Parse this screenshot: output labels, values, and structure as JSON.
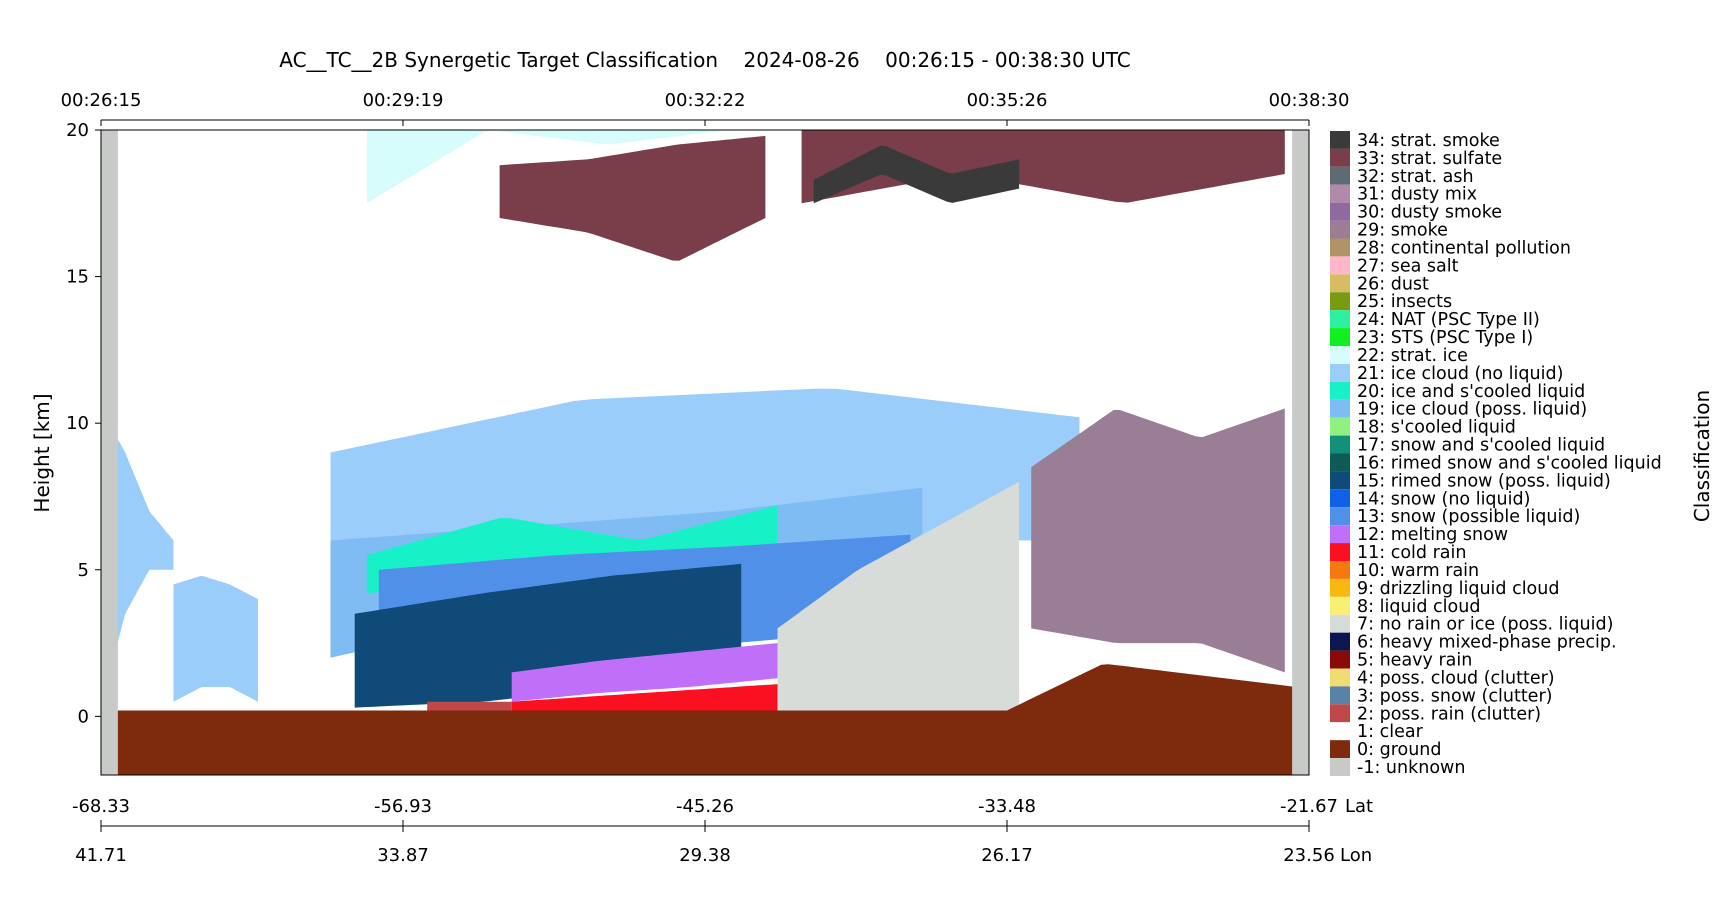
{
  "chart_data": {
    "type": "heatmap",
    "title": "AC__TC__2B Synergetic Target Classification    2024-08-26    00:26:15 - 00:38:30 UTC",
    "ylabel": "Height [km]",
    "ylim": [
      -2,
      20
    ],
    "y_ticks": [
      "0",
      "5",
      "10",
      "15",
      "20"
    ],
    "time_ticks": [
      "00:26:15",
      "00:29:19",
      "00:32:22",
      "00:35:26",
      "00:38:30"
    ],
    "lat_ticks": [
      "-68.33",
      "-56.93",
      "-45.26",
      "-33.48",
      "-21.67"
    ],
    "lat_label": "Lat",
    "lon_ticks": [
      "41.71",
      "33.87",
      "29.38",
      "26.17",
      "23.56"
    ],
    "lon_label": "Lon",
    "colorbar_label": "Classification",
    "legend_placement": "right",
    "classes": [
      {
        "label": "34: strat. smoke",
        "color": "#3a3a3a"
      },
      {
        "label": "33: strat. sulfate",
        "color": "#7a3e4a"
      },
      {
        "label": "32: strat. ash",
        "color": "#5e6b75"
      },
      {
        "label": "31: dusty mix",
        "color": "#b08aa8"
      },
      {
        "label": "30: dusty smoke",
        "color": "#8e6aa0"
      },
      {
        "label": "29: smoke",
        "color": "#9a7e96"
      },
      {
        "label": "28: continental pollution",
        "color": "#b09468"
      },
      {
        "label": "27: sea salt",
        "color": "#ffb6c8"
      },
      {
        "label": "26: dust",
        "color": "#d8bc64"
      },
      {
        "label": "25: insects",
        "color": "#7a9a10"
      },
      {
        "label": "24: NAT (PSC Type II)",
        "color": "#2ef0a0"
      },
      {
        "label": "23: STS (PSC Type I)",
        "color": "#10f020"
      },
      {
        "label": "22: strat. ice",
        "color": "#d6fcfc"
      },
      {
        "label": "21: ice cloud (no liquid)",
        "color": "#9acdfa"
      },
      {
        "label": "20: ice and s'cooled liquid",
        "color": "#18f0c8"
      },
      {
        "label": "19: ice cloud (poss. liquid)",
        "color": "#80bcf4"
      },
      {
        "label": "18: s'cooled liquid",
        "color": "#90f080"
      },
      {
        "label": "17: snow and s'cooled liquid",
        "color": "#12907a"
      },
      {
        "label": "16: rimed snow and s'cooled liquid",
        "color": "#0e5a56"
      },
      {
        "label": "15: rimed snow (poss. liquid)",
        "color": "#104a78"
      },
      {
        "label": "14: snow (no liquid)",
        "color": "#1060e8"
      },
      {
        "label": "13: snow (possible liquid)",
        "color": "#5090e8"
      },
      {
        "label": "12: melting snow",
        "color": "#c070f8"
      },
      {
        "label": "11: cold rain",
        "color": "#fa1020"
      },
      {
        "label": "10: warm rain",
        "color": "#f87810"
      },
      {
        "label": "9: drizzling liquid cloud",
        "color": "#f8b810"
      },
      {
        "label": "8: liquid cloud",
        "color": "#f8f070"
      },
      {
        "label": "7: no rain or ice (poss. liquid)",
        "color": "#d8dcd8"
      },
      {
        "label": "6: heavy mixed-phase precip.",
        "color": "#0a1650"
      },
      {
        "label": "5: heavy rain",
        "color": "#8a0a0a"
      },
      {
        "label": "4: poss. cloud (clutter)",
        "color": "#f0dc70"
      },
      {
        "label": "3: poss. snow (clutter)",
        "color": "#5882a8"
      },
      {
        "label": "2: poss. rain (clutter)",
        "color": "#c04848"
      },
      {
        "label": "1: clear",
        "color": "#ffffff"
      },
      {
        "label": "0: ground",
        "color": "#7e2a0c"
      },
      {
        "label": "-1: unknown",
        "color": "#c8cac8"
      }
    ],
    "layers": [
      {
        "cls": 22,
        "x": [
          0.22,
          0.52
        ],
        "y0": [
          17.5,
          20,
          19.5,
          20
        ],
        "y1": [
          20,
          20,
          20,
          20
        ]
      },
      {
        "cls": 33,
        "x": [
          0.33,
          0.55
        ],
        "y0": [
          17,
          16.5,
          15.5,
          17
        ],
        "y1": [
          18.8,
          19,
          19.5,
          19.8
        ]
      },
      {
        "cls": 33,
        "x": [
          0.58,
          0.98
        ],
        "y0": [
          17.5,
          18.5,
          17.5,
          18.5
        ],
        "y1": [
          20,
          20,
          20,
          20
        ]
      },
      {
        "cls": 34,
        "x": [
          0.59,
          0.76
        ],
        "y0": [
          17.5,
          18.5,
          17.5,
          18
        ],
        "y1": [
          18.3,
          19.5,
          18.5,
          19
        ]
      },
      {
        "cls": 21,
        "x": [
          0.0,
          0.06
        ],
        "y0": [
          0.3,
          3.5,
          5,
          5
        ],
        "y1": [
          10.5,
          9,
          7,
          6
        ]
      },
      {
        "cls": 21,
        "x": [
          0.19,
          0.81
        ],
        "y0": [
          5,
          5.5,
          6,
          6
        ],
        "y1": [
          9,
          10.8,
          11.2,
          10.2
        ]
      },
      {
        "cls": 21,
        "x": [
          0.06,
          0.13
        ],
        "y0": [
          0.5,
          1,
          1,
          0.5
        ],
        "y1": [
          4.5,
          4.8,
          4.5,
          4
        ]
      },
      {
        "cls": 19,
        "x": [
          0.19,
          0.68
        ],
        "y0": [
          2,
          3.5,
          5,
          6
        ],
        "y1": [
          6,
          6.5,
          7,
          7.8
        ]
      },
      {
        "cls": 20,
        "x": [
          0.22,
          0.56
        ],
        "y0": [
          4.2,
          4.6,
          5.2,
          5.6
        ],
        "y1": [
          5.5,
          6.8,
          6,
          7.2
        ]
      },
      {
        "cls": 16,
        "x": [
          0.32,
          0.53
        ],
        "y0": [
          3.5,
          3.8,
          4.2,
          4.5
        ],
        "y1": [
          5,
          5.2,
          5.4,
          5.5
        ]
      },
      {
        "cls": 14,
        "x": [
          0.36,
          0.66
        ],
        "y0": [
          4.6,
          4.8,
          5,
          5.1
        ],
        "y1": [
          5.1,
          5.4,
          5.8,
          6
        ]
      },
      {
        "cls": 13,
        "x": [
          0.23,
          0.67
        ],
        "y0": [
          0.8,
          1.5,
          2.5,
          3
        ],
        "y1": [
          5,
          5.5,
          5.8,
          6.2
        ]
      },
      {
        "cls": 15,
        "x": [
          0.21,
          0.53
        ],
        "y0": [
          0.3,
          0.5,
          1,
          2
        ],
        "y1": [
          3.5,
          4.2,
          4.8,
          5.2
        ]
      },
      {
        "cls": 12,
        "x": [
          0.34,
          0.56
        ],
        "y0": [
          0.5,
          0.8,
          1,
          1.3
        ],
        "y1": [
          1.5,
          1.9,
          2.2,
          2.5
        ]
      },
      {
        "cls": 11,
        "x": [
          0.34,
          0.56
        ],
        "y0": [
          0.2,
          0.2,
          0.2,
          0.2
        ],
        "y1": [
          0.5,
          0.7,
          0.9,
          1.1
        ]
      },
      {
        "cls": 2,
        "x": [
          0.27,
          0.34
        ],
        "y0": [
          0.2,
          0.2,
          0.2,
          0.2
        ],
        "y1": [
          0.5,
          0.5,
          0.5,
          0.5
        ]
      },
      {
        "cls": 7,
        "x": [
          0.56,
          0.76
        ],
        "y0": [
          0.2,
          0.2,
          0.2,
          0.2
        ],
        "y1": [
          3,
          5,
          6.5,
          8
        ]
      },
      {
        "cls": 29,
        "x": [
          0.77,
          0.98
        ],
        "y0": [
          3,
          2.5,
          2.5,
          1.5
        ],
        "y1": [
          8.5,
          10.5,
          9.5,
          10.5
        ]
      },
      {
        "cls": 0,
        "x": [
          0.0,
          1.0
        ],
        "y0": [
          -2,
          -2,
          -2,
          -2
        ],
        "y1": [
          0.2,
          0.2,
          0.2,
          0.2
        ]
      },
      {
        "cls": 0,
        "x": [
          0.75,
          0.99
        ],
        "y0": [
          0.2,
          0.2,
          0.2,
          0.2
        ],
        "y1": [
          0.2,
          1.8,
          1.4,
          1
        ]
      },
      {
        "cls": -1,
        "x": [
          0.0,
          0.014
        ],
        "y0": [
          -2,
          -2,
          -2,
          -2
        ],
        "y1": [
          20,
          20,
          20,
          20
        ]
      },
      {
        "cls": -1,
        "x": [
          0.986,
          1.0
        ],
        "y0": [
          -2,
          -2,
          -2,
          -2
        ],
        "y1": [
          20,
          20,
          20,
          20
        ]
      }
    ]
  }
}
